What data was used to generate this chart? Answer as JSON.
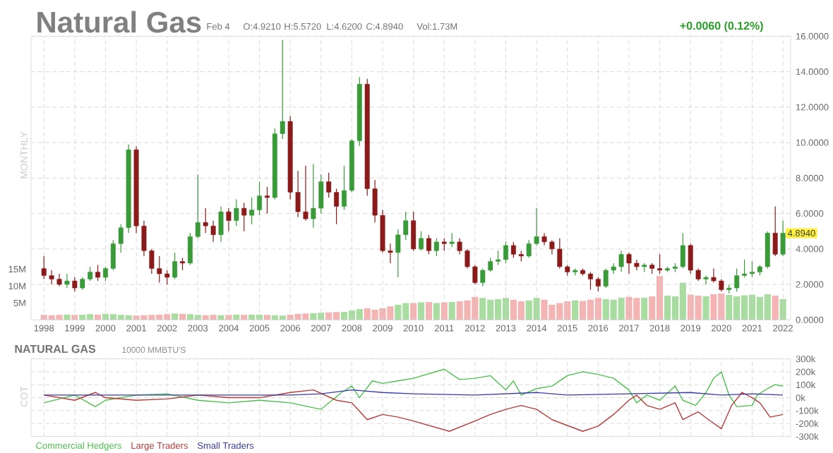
{
  "chart_data": [
    {
      "type": "candlestick",
      "title": "Natural Gas",
      "y2label": "MONTHLY",
      "annotations": [
        "Feb 4",
        "O:4.9210",
        "H:5.5720",
        "L:4.6200",
        "C:4.8940",
        "Vol:1.73M",
        "+0.0060 (0.12%)",
        {
          "text": "4.8940",
          "x": "2022-02",
          "y": 4.894
        }
      ],
      "x": [
        "1998-01",
        "1998-04",
        "1998-07",
        "1998-10",
        "1999-01",
        "1999-04",
        "1999-07",
        "1999-10",
        "2000-01",
        "2000-04",
        "2000-07",
        "2000-10",
        "2001-01",
        "2001-04",
        "2001-07",
        "2001-10",
        "2002-01",
        "2002-04",
        "2002-07",
        "2002-10",
        "2003-01",
        "2003-04",
        "2003-07",
        "2003-10",
        "2004-01",
        "2004-04",
        "2004-07",
        "2004-10",
        "2005-01",
        "2005-04",
        "2005-07",
        "2005-10",
        "2006-01",
        "2006-04",
        "2006-07",
        "2006-10",
        "2007-01",
        "2007-04",
        "2007-07",
        "2007-10",
        "2008-01",
        "2008-04",
        "2008-07",
        "2008-10",
        "2009-01",
        "2009-04",
        "2009-07",
        "2009-10",
        "2010-01",
        "2010-04",
        "2010-07",
        "2010-10",
        "2011-01",
        "2011-04",
        "2011-07",
        "2011-10",
        "2012-01",
        "2012-04",
        "2012-07",
        "2012-10",
        "2013-01",
        "2013-04",
        "2013-07",
        "2013-10",
        "2014-01",
        "2014-04",
        "2014-07",
        "2014-10",
        "2015-01",
        "2015-04",
        "2015-07",
        "2015-10",
        "2016-01",
        "2016-04",
        "2016-07",
        "2016-10",
        "2017-01",
        "2017-04",
        "2017-07",
        "2017-10",
        "2018-01",
        "2018-04",
        "2018-07",
        "2018-10",
        "2019-01",
        "2019-04",
        "2019-07",
        "2019-10",
        "2020-01",
        "2020-04",
        "2020-07",
        "2020-10",
        "2021-01",
        "2021-04",
        "2021-07",
        "2021-10",
        "2022-01"
      ],
      "ohlc": [
        [
          2.9,
          3.6,
          2.3,
          2.5
        ],
        [
          2.5,
          2.8,
          2.0,
          2.3
        ],
        [
          2.3,
          2.6,
          1.9,
          2.0
        ],
        [
          2.0,
          2.6,
          1.8,
          2.2
        ],
        [
          2.2,
          2.4,
          1.6,
          1.8
        ],
        [
          1.8,
          2.4,
          1.7,
          2.3
        ],
        [
          2.3,
          3.0,
          2.2,
          2.7
        ],
        [
          2.7,
          3.1,
          2.2,
          2.4
        ],
        [
          2.4,
          3.0,
          2.2,
          2.9
        ],
        [
          2.9,
          4.5,
          2.8,
          4.3
        ],
        [
          4.3,
          5.4,
          3.8,
          5.2
        ],
        [
          5.2,
          9.9,
          4.9,
          9.6
        ],
        [
          9.6,
          9.8,
          4.9,
          5.3
        ],
        [
          5.3,
          5.6,
          3.6,
          3.9
        ],
        [
          3.9,
          4.0,
          2.6,
          2.9
        ],
        [
          2.9,
          3.6,
          2.1,
          2.6
        ],
        [
          2.6,
          2.8,
          2.0,
          2.4
        ],
        [
          2.4,
          3.8,
          2.3,
          3.3
        ],
        [
          3.3,
          3.5,
          2.8,
          3.2
        ],
        [
          3.2,
          4.9,
          3.1,
          4.7
        ],
        [
          4.7,
          8.2,
          4.6,
          5.5
        ],
        [
          5.5,
          6.3,
          4.9,
          5.3
        ],
        [
          5.3,
          5.6,
          4.4,
          4.8
        ],
        [
          4.8,
          6.4,
          4.4,
          6.1
        ],
        [
          6.1,
          6.3,
          5.0,
          5.6
        ],
        [
          5.6,
          6.8,
          5.3,
          6.3
        ],
        [
          6.3,
          6.6,
          5.0,
          5.9
        ],
        [
          5.9,
          6.9,
          5.4,
          6.2
        ],
        [
          6.2,
          7.8,
          5.9,
          7.0
        ],
        [
          7.0,
          7.5,
          6.0,
          6.9
        ],
        [
          6.9,
          10.8,
          6.8,
          10.5
        ],
        [
          10.5,
          15.8,
          10.2,
          11.2
        ],
        [
          11.2,
          11.5,
          6.8,
          7.2
        ],
        [
          7.2,
          8.4,
          5.8,
          6.1
        ],
        [
          6.1,
          8.7,
          5.6,
          5.7
        ],
        [
          5.7,
          8.8,
          5.2,
          6.3
        ],
        [
          6.3,
          8.2,
          6.0,
          7.8
        ],
        [
          7.8,
          8.3,
          6.9,
          7.2
        ],
        [
          7.2,
          7.4,
          5.4,
          6.4
        ],
        [
          6.4,
          8.7,
          6.2,
          7.3
        ],
        [
          7.3,
          10.2,
          7.2,
          10.1
        ],
        [
          10.1,
          13.7,
          9.8,
          13.3
        ],
        [
          13.3,
          13.6,
          7.0,
          7.4
        ],
        [
          7.4,
          7.9,
          5.5,
          5.9
        ],
        [
          5.9,
          6.2,
          3.8,
          3.9
        ],
        [
          3.9,
          4.3,
          3.2,
          3.8
        ],
        [
          3.8,
          5.1,
          2.4,
          4.8
        ],
        [
          4.8,
          6.1,
          4.5,
          5.6
        ],
        [
          5.6,
          6.1,
          3.9,
          4.0
        ],
        [
          4.0,
          5.0,
          3.9,
          4.6
        ],
        [
          4.6,
          4.8,
          3.7,
          3.9
        ],
        [
          3.9,
          4.6,
          3.6,
          4.4
        ],
        [
          4.4,
          4.6,
          3.9,
          4.3
        ],
        [
          4.3,
          4.9,
          4.1,
          4.4
        ],
        [
          4.4,
          4.6,
          3.7,
          3.9
        ],
        [
          3.9,
          4.0,
          2.9,
          3.0
        ],
        [
          3.0,
          3.1,
          2.0,
          2.1
        ],
        [
          2.1,
          2.9,
          1.9,
          2.8
        ],
        [
          2.8,
          3.5,
          2.7,
          3.3
        ],
        [
          3.3,
          3.9,
          3.1,
          3.4
        ],
        [
          3.4,
          4.4,
          3.2,
          4.2
        ],
        [
          4.2,
          4.4,
          3.5,
          3.7
        ],
        [
          3.7,
          3.9,
          3.3,
          3.6
        ],
        [
          3.6,
          4.5,
          3.5,
          4.3
        ],
        [
          4.3,
          6.3,
          4.2,
          4.7
        ],
        [
          4.7,
          4.9,
          4.2,
          4.4
        ],
        [
          4.4,
          4.5,
          3.7,
          4.0
        ],
        [
          4.0,
          4.6,
          2.9,
          3.0
        ],
        [
          3.0,
          3.1,
          2.5,
          2.7
        ],
        [
          2.7,
          2.9,
          2.5,
          2.8
        ],
        [
          2.8,
          2.9,
          2.5,
          2.6
        ],
        [
          2.6,
          2.7,
          1.7,
          2.3
        ],
        [
          2.3,
          2.4,
          1.6,
          1.9
        ],
        [
          1.9,
          2.9,
          1.8,
          2.8
        ],
        [
          2.8,
          3.2,
          2.6,
          3.0
        ],
        [
          3.0,
          3.9,
          2.7,
          3.7
        ],
        [
          3.7,
          3.8,
          2.6,
          3.2
        ],
        [
          3.2,
          3.4,
          2.8,
          3.0
        ],
        [
          3.0,
          3.2,
          2.7,
          3.1
        ],
        [
          3.1,
          3.2,
          2.6,
          2.9
        ],
        [
          2.9,
          3.7,
          2.6,
          2.8
        ],
        [
          2.8,
          3.0,
          2.7,
          2.9
        ],
        [
          2.9,
          3.2,
          2.7,
          3.0
        ],
        [
          3.0,
          4.9,
          2.9,
          4.2
        ],
        [
          4.2,
          4.3,
          2.6,
          2.8
        ],
        [
          2.8,
          2.9,
          2.2,
          2.3
        ],
        [
          2.3,
          2.5,
          2.0,
          2.4
        ],
        [
          2.4,
          2.9,
          2.1,
          2.2
        ],
        [
          2.2,
          2.3,
          1.6,
          1.7
        ],
        [
          1.7,
          2.0,
          1.5,
          1.8
        ],
        [
          1.8,
          2.9,
          1.6,
          2.5
        ],
        [
          2.5,
          3.4,
          2.4,
          2.6
        ],
        [
          2.6,
          3.3,
          2.4,
          2.7
        ],
        [
          2.7,
          3.1,
          2.5,
          3.0
        ],
        [
          3.0,
          5.0,
          2.9,
          4.9
        ],
        [
          4.9,
          6.4,
          3.6,
          3.7
        ],
        [
          3.7,
          5.6,
          3.6,
          4.9
        ]
      ],
      "colors": [
        "#8b1a1a",
        "#8b1a1a",
        "#8b1a1a",
        "#3a9a3a",
        "#8b1a1a",
        "#3a9a3a",
        "#3a9a3a",
        "#8b1a1a",
        "#3a9a3a",
        "#3a9a3a",
        "#3a9a3a",
        "#3a9a3a",
        "#8b1a1a",
        "#8b1a1a",
        "#8b1a1a",
        "#8b1a1a",
        "#8b1a1a",
        "#3a9a3a",
        "#8b1a1a",
        "#3a9a3a",
        "#3a9a3a",
        "#8b1a1a",
        "#8b1a1a",
        "#3a9a3a",
        "#8b1a1a",
        "#3a9a3a",
        "#8b1a1a",
        "#3a9a3a",
        "#3a9a3a",
        "#8b1a1a",
        "#3a9a3a",
        "#3a9a3a",
        "#8b1a1a",
        "#8b1a1a",
        "#8b1a1a",
        "#3a9a3a",
        "#3a9a3a",
        "#8b1a1a",
        "#8b1a1a",
        "#3a9a3a",
        "#3a9a3a",
        "#3a9a3a",
        "#8b1a1a",
        "#8b1a1a",
        "#8b1a1a",
        "#8b1a1a",
        "#3a9a3a",
        "#3a9a3a",
        "#8b1a1a",
        "#3a9a3a",
        "#8b1a1a",
        "#3a9a3a",
        "#8b1a1a",
        "#3a9a3a",
        "#8b1a1a",
        "#8b1a1a",
        "#8b1a1a",
        "#3a9a3a",
        "#3a9a3a",
        "#3a9a3a",
        "#3a9a3a",
        "#8b1a1a",
        "#8b1a1a",
        "#3a9a3a",
        "#3a9a3a",
        "#8b1a1a",
        "#8b1a1a",
        "#8b1a1a",
        "#8b1a1a",
        "#3a9a3a",
        "#8b1a1a",
        "#8b1a1a",
        "#8b1a1a",
        "#3a9a3a",
        "#3a9a3a",
        "#3a9a3a",
        "#8b1a1a",
        "#8b1a1a",
        "#3a9a3a",
        "#8b1a1a",
        "#8b1a1a",
        "#3a9a3a",
        "#3a9a3a",
        "#3a9a3a",
        "#8b1a1a",
        "#8b1a1a",
        "#3a9a3a",
        "#8b1a1a",
        "#8b1a1a",
        "#3a9a3a",
        "#3a9a3a",
        "#3a9a3a",
        "#3a9a3a",
        "#3a9a3a",
        "#3a9a3a",
        "#8b1a1a",
        "#3a9a3a"
      ],
      "series": [
        {
          "type": "bar",
          "axis": "y2",
          "values": [
            1.5,
            1.4,
            1.5,
            1.6,
            1.5,
            1.6,
            1.7,
            1.6,
            1.8,
            1.7,
            1.5,
            1.4,
            1.3,
            1.4,
            1.5,
            1.6,
            1.7,
            1.9,
            1.8,
            1.7,
            1.5,
            1.4,
            1.5,
            1.4,
            1.5,
            1.6,
            1.5,
            1.6,
            1.6,
            1.5,
            1.4,
            1.3,
            1.6,
            1.8,
            1.9,
            2.0,
            2.1,
            2.2,
            2.3,
            2.4,
            2.8,
            3.2,
            3.5,
            3.0,
            3.5,
            4.0,
            4.5,
            5.0,
            5.0,
            5.2,
            5.3,
            5.0,
            5.2,
            5.3,
            5.5,
            5.8,
            6.8,
            6.5,
            6.0,
            6.2,
            6.5,
            6.0,
            5.5,
            5.8,
            6.5,
            6.0,
            4.5,
            5.0,
            5.5,
            5.8,
            5.6,
            6.0,
            6.5,
            6.2,
            6.0,
            6.6,
            6.8,
            6.5,
            6.6,
            7.0,
            13.0,
            7.2,
            7.0,
            11.0,
            7.5,
            7.2,
            7.0,
            7.6,
            7.8,
            7.4,
            7.0,
            7.3,
            7.5,
            6.8,
            7.6,
            7.2,
            6.2
          ],
          "colors": [
            "#f4b4b4",
            "#f4b4b4",
            "#f4b4b4",
            "#a9dca0",
            "#f4b4b4",
            "#a9dca0",
            "#a9dca0",
            "#f4b4b4",
            "#a9dca0",
            "#a9dca0",
            "#a9dca0",
            "#a9dca0",
            "#f4b4b4",
            "#f4b4b4",
            "#f4b4b4",
            "#f4b4b4",
            "#f4b4b4",
            "#a9dca0",
            "#f4b4b4",
            "#a9dca0",
            "#a9dca0",
            "#f4b4b4",
            "#f4b4b4",
            "#a9dca0",
            "#f4b4b4",
            "#a9dca0",
            "#f4b4b4",
            "#a9dca0",
            "#a9dca0",
            "#f4b4b4",
            "#a9dca0",
            "#a9dca0",
            "#f4b4b4",
            "#f4b4b4",
            "#f4b4b4",
            "#a9dca0",
            "#a9dca0",
            "#f4b4b4",
            "#f4b4b4",
            "#a9dca0",
            "#a9dca0",
            "#a9dca0",
            "#f4b4b4",
            "#f4b4b4",
            "#f4b4b4",
            "#f4b4b4",
            "#a9dca0",
            "#a9dca0",
            "#f4b4b4",
            "#a9dca0",
            "#f4b4b4",
            "#a9dca0",
            "#f4b4b4",
            "#a9dca0",
            "#f4b4b4",
            "#f4b4b4",
            "#f4b4b4",
            "#a9dca0",
            "#a9dca0",
            "#a9dca0",
            "#a9dca0",
            "#f4b4b4",
            "#f4b4b4",
            "#a9dca0",
            "#a9dca0",
            "#f4b4b4",
            "#f4b4b4",
            "#f4b4b4",
            "#f4b4b4",
            "#a9dca0",
            "#f4b4b4",
            "#f4b4b4",
            "#f4b4b4",
            "#a9dca0",
            "#a9dca0",
            "#a9dca0",
            "#f4b4b4",
            "#f4b4b4",
            "#a9dca0",
            "#f4b4b4",
            "#f4b4b4",
            "#a9dca0",
            "#a9dca0",
            "#a9dca0",
            "#f4b4b4",
            "#f4b4b4",
            "#a9dca0",
            "#f4b4b4",
            "#f4b4b4",
            "#a9dca0",
            "#a9dca0",
            "#a9dca0",
            "#a9dca0",
            "#a9dca0",
            "#a9dca0",
            "#f4b4b4",
            "#a9dca0"
          ]
        }
      ],
      "xlim": [
        "1997-08",
        "2022-04"
      ],
      "xticks": [
        {
          "value": "1998",
          "label": "1998"
        },
        {
          "value": "1999",
          "label": "1999"
        },
        {
          "value": "2000",
          "label": "2000"
        },
        {
          "value": "2001",
          "label": "2001"
        },
        {
          "value": "2002",
          "label": "2002"
        },
        {
          "value": "2003",
          "label": "2003"
        },
        {
          "value": "2004",
          "label": "2004"
        },
        {
          "value": "2005",
          "label": "2005"
        },
        {
          "value": "2006",
          "label": "2006"
        },
        {
          "value": "2007",
          "label": "2007"
        },
        {
          "value": "2008",
          "label": "2008"
        },
        {
          "value": "2009",
          "label": "2009"
        },
        {
          "value": "2010",
          "label": "2010"
        },
        {
          "value": "2011",
          "label": "2011"
        },
        {
          "value": "2012",
          "label": "2012"
        },
        {
          "value": "2013",
          "label": "2013"
        },
        {
          "value": "2014",
          "label": "2014"
        },
        {
          "value": "2015",
          "label": "2015"
        },
        {
          "value": "2016",
          "label": "2016"
        },
        {
          "value": "2017",
          "label": "2017"
        },
        {
          "value": "2018",
          "label": "2018"
        },
        {
          "value": "2019",
          "label": "2019"
        },
        {
          "value": "2020",
          "label": "2020"
        },
        {
          "value": "2021",
          "label": "2021"
        },
        {
          "value": "2022",
          "label": "2022"
        }
      ],
      "ylim": [
        0,
        16
      ],
      "yticks": [
        {
          "value": 0,
          "label": "0.0000"
        },
        {
          "value": 2,
          "label": "2.0000"
        },
        {
          "value": 4,
          "label": "4.0000"
        },
        {
          "value": 6,
          "label": "6.0000"
        },
        {
          "value": 8,
          "label": "8.0000"
        },
        {
          "value": 10,
          "label": "10.0000"
        },
        {
          "value": 12,
          "label": "12.0000"
        },
        {
          "value": 14,
          "label": "14.0000"
        },
        {
          "value": 16,
          "label": "16.0000"
        }
      ],
      "y2lim": [
        0,
        84
      ],
      "y2ticks": [
        {
          "value": 5,
          "label": "5M"
        },
        {
          "value": 10,
          "label": "10M"
        },
        {
          "value": 15,
          "label": "15M"
        }
      ],
      "grid": true
    },
    {
      "type": "line",
      "title": "NATURAL GAS",
      "subtitle": "10000 MMBTU'S",
      "ylabel": "COT",
      "legend": "bottom left",
      "tick_labels": "y",
      "grid": true,
      "series": [
        {
          "name": "Commercial Hedgers",
          "color": "#4cc04c",
          "x": [
            "1998-01",
            "1999-01",
            "1999-09",
            "2000-01",
            "2001-01",
            "2002-01",
            "2003-01",
            "2004-01",
            "2005-01",
            "2006-01",
            "2007-01",
            "2007-09",
            "2008-01",
            "2008-04",
            "2008-09",
            "2009-01",
            "2009-07",
            "2010-01",
            "2011-01",
            "2011-07",
            "2012-01",
            "2012-07",
            "2013-01",
            "2013-04",
            "2013-07",
            "2014-01",
            "2014-07",
            "2015-01",
            "2015-07",
            "2016-01",
            "2016-07",
            "2017-01",
            "2017-04",
            "2017-08",
            "2018-01",
            "2018-07",
            "2018-10",
            "2019-03",
            "2019-07",
            "2019-10",
            "2020-01",
            "2020-04",
            "2020-07",
            "2021-01",
            "2021-03",
            "2021-07",
            "2021-10",
            "2022-01"
          ],
          "values": [
            -40,
            20,
            -70,
            -20,
            20,
            30,
            -20,
            -40,
            -20,
            -40,
            -90,
            40,
            90,
            0,
            130,
            110,
            130,
            150,
            220,
            140,
            150,
            170,
            60,
            130,
            20,
            70,
            90,
            170,
            200,
            180,
            150,
            60,
            -40,
            20,
            -20,
            90,
            -20,
            -60,
            40,
            150,
            200,
            20,
            -70,
            -60,
            20,
            70,
            100,
            90
          ]
        },
        {
          "name": "Large Traders",
          "color": "#b83a3a",
          "x": [
            "1998-01",
            "1999-01",
            "1999-09",
            "2000-01",
            "2001-01",
            "2002-01",
            "2003-01",
            "2004-01",
            "2005-01",
            "2006-01",
            "2006-10",
            "2007-07",
            "2008-01",
            "2008-07",
            "2009-01",
            "2009-07",
            "2010-01",
            "2011-03",
            "2012-01",
            "2012-07",
            "2013-01",
            "2013-07",
            "2014-01",
            "2014-07",
            "2015-07",
            "2016-01",
            "2016-07",
            "2017-01",
            "2017-04",
            "2017-08",
            "2018-01",
            "2018-07",
            "2018-10",
            "2019-04",
            "2019-08",
            "2020-01",
            "2020-05",
            "2020-09",
            "2021-01",
            "2021-04",
            "2021-08",
            "2022-01"
          ],
          "values": [
            20,
            -20,
            40,
            0,
            -20,
            -10,
            20,
            0,
            0,
            40,
            60,
            -20,
            -40,
            -170,
            -130,
            -150,
            -180,
            -260,
            -180,
            -130,
            -90,
            -60,
            -90,
            -170,
            -260,
            -220,
            -130,
            -20,
            20,
            -60,
            -90,
            -40,
            -170,
            -110,
            -170,
            -240,
            -60,
            40,
            0,
            -40,
            -150,
            -130
          ]
        },
        {
          "name": "Small Traders",
          "color": "#3a3aa8",
          "x": [
            "1998-01",
            "2002-01",
            "2006-01",
            "2007-01",
            "2008-01",
            "2009-01",
            "2010-01",
            "2012-01",
            "2014-01",
            "2015-01",
            "2017-01",
            "2019-01",
            "2020-01",
            "2021-01",
            "2022-01"
          ],
          "values": [
            20,
            20,
            20,
            30,
            60,
            40,
            30,
            20,
            40,
            20,
            30,
            40,
            20,
            30,
            20
          ]
        }
      ],
      "xlim": [
        "1997-08",
        "2022-04"
      ],
      "xticks": [
        {
          "value": "1998",
          "label": null
        },
        {
          "value": "1999",
          "label": null
        },
        {
          "value": "2000",
          "label": null
        },
        {
          "value": "2001",
          "label": null
        },
        {
          "value": "2002",
          "label": null
        },
        {
          "value": "2003",
          "label": null
        },
        {
          "value": "2004",
          "label": null
        },
        {
          "value": "2005",
          "label": null
        },
        {
          "value": "2006",
          "label": null
        },
        {
          "value": "2007",
          "label": null
        },
        {
          "value": "2008",
          "label": null
        },
        {
          "value": "2009",
          "label": null
        },
        {
          "value": "2010",
          "label": null
        },
        {
          "value": "2011",
          "label": null
        },
        {
          "value": "2012",
          "label": null
        },
        {
          "value": "2013",
          "label": null
        },
        {
          "value": "2014",
          "label": null
        },
        {
          "value": "2015",
          "label": null
        },
        {
          "value": "2016",
          "label": null
        },
        {
          "value": "2017",
          "label": null
        },
        {
          "value": "2018",
          "label": null
        },
        {
          "value": "2019",
          "label": null
        },
        {
          "value": "2020",
          "label": null
        },
        {
          "value": "2021",
          "label": null
        },
        {
          "value": "2022",
          "label": null
        }
      ],
      "ylim": [
        -300,
        300
      ],
      "yticks": [
        {
          "value": -300,
          "label": "-300k"
        },
        {
          "value": -200,
          "label": "-200k"
        },
        {
          "value": -100,
          "label": "-100k"
        },
        {
          "value": 0,
          "label": "0k"
        },
        {
          "value": 100,
          "label": "100k"
        },
        {
          "value": 200,
          "label": "200k"
        },
        {
          "value": 300,
          "label": "300k"
        }
      ]
    }
  ]
}
